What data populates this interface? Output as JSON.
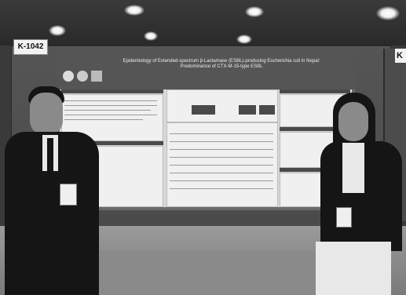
{
  "scene": {
    "booth_label_left": "K-1042",
    "booth_label_right": "K",
    "poster_title_line1": "Epidemiology of Extended-spectrum β-Lactamase (ESBL)-producing Escherichia coli in Nepal:",
    "poster_title_line2": "Predominance of CTX-M-15-type ESBL"
  }
}
